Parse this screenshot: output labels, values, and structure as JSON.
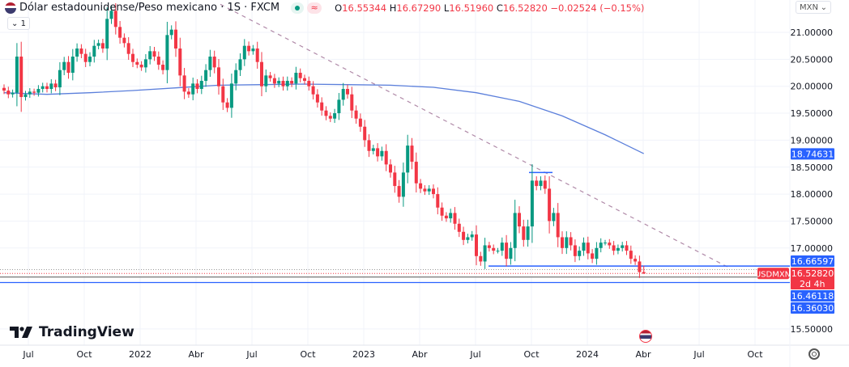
{
  "header": {
    "title": "Dólar estadounidense/Peso mexicano · 1S · FXCM",
    "open_label": "O",
    "open": "16.55344",
    "high_label": "H",
    "high": "16.67290",
    "low_label": "L",
    "low": "16.51960",
    "close_label": "C",
    "close": "16.52820",
    "change": "−0.02524 (−0.15%)",
    "approx_icon": "≈",
    "collapse_label": "1"
  },
  "currency_selector": {
    "value": "MXN"
  },
  "logo": {
    "text": "TradingView"
  },
  "colors": {
    "up": "#089981",
    "down": "#f23645",
    "ma": "#5b7fdb",
    "level": "#2962ff",
    "trend": "#b08aa8"
  },
  "chart_data": {
    "type": "candlestick",
    "symbol": "USDMXN",
    "interval": "1S",
    "ylim": [
      15.3,
      21.5
    ],
    "y_ticks": [
      "21.00000",
      "20.50000",
      "20.00000",
      "19.50000",
      "19.00000",
      "18.50000",
      "18.00000",
      "17.50000",
      "17.00000",
      "15.50000"
    ],
    "x_ticks": [
      "Jul",
      "Oct",
      "2022",
      "Abr",
      "Jul",
      "Oct",
      "2023",
      "Abr",
      "Jul",
      "Oct",
      "2024",
      "Abr",
      "Jul",
      "Oct"
    ],
    "grid": true,
    "closes": [
      19.92,
      19.85,
      19.88,
      20.55,
      19.8,
      19.85,
      19.9,
      19.88,
      19.95,
      20.0,
      19.95,
      20.05,
      19.98,
      20.3,
      20.45,
      20.25,
      20.55,
      20.7,
      20.6,
      20.45,
      20.55,
      20.75,
      20.8,
      20.7,
      21.25,
      21.4,
      21.1,
      20.9,
      20.8,
      20.6,
      20.45,
      20.4,
      20.35,
      20.5,
      20.65,
      20.55,
      20.4,
      20.3,
      20.95,
      21.05,
      20.7,
      20.2,
      19.9,
      19.85,
      20.05,
      19.95,
      20.1,
      20.3,
      20.55,
      20.35,
      20.0,
      19.7,
      19.6,
      20.05,
      20.3,
      20.5,
      20.75,
      20.65,
      20.7,
      20.45,
      20.0,
      20.2,
      20.15,
      20.05,
      20.1,
      20.0,
      20.1,
      20.05,
      20.25,
      20.15,
      20.1,
      20.0,
      19.85,
      19.7,
      19.55,
      19.45,
      19.4,
      19.5,
      19.75,
      19.95,
      19.85,
      19.55,
      19.4,
      19.25,
      19.0,
      18.8,
      18.85,
      18.7,
      18.8,
      18.55,
      18.4,
      18.15,
      17.95,
      18.4,
      18.9,
      18.6,
      18.2,
      18.1,
      18.05,
      18.1,
      18.0,
      17.75,
      17.6,
      17.55,
      17.65,
      17.45,
      17.3,
      17.15,
      17.2,
      17.25,
      16.85,
      16.75,
      17.05,
      17.0,
      16.95,
      16.95,
      17.1,
      16.8,
      17.0,
      17.65,
      17.4,
      17.15,
      17.4,
      18.25,
      18.15,
      18.25,
      18.1,
      17.5,
      17.65,
      17.2,
      17.0,
      17.2,
      17.05,
      16.85,
      16.95,
      17.1,
      16.9,
      16.8,
      17.0,
      17.1,
      17.1,
      17.05,
      16.95,
      17.0,
      17.05,
      16.95,
      16.8,
      16.75,
      16.55344,
      16.5282
    ],
    "last_candle": {
      "open": 16.55344,
      "high": 16.6729,
      "low": 16.5196,
      "close": 16.5282
    },
    "moving_average_every_10_weeks": [
      19.88,
      19.85,
      19.88,
      19.92,
      19.97,
      20.02,
      20.03,
      20.04,
      20.03,
      20.02,
      19.98,
      19.88,
      19.72,
      19.45,
      19.1,
      18.75
    ],
    "trendline": {
      "start": {
        "date": "2022-05",
        "price": 21.52
      },
      "end": {
        "date": "2024-08",
        "price": 16.65
      },
      "style": "dashed"
    },
    "resistance_segment": {
      "price": 18.4,
      "from": "2023-10",
      "to": "2023-11"
    },
    "levels": [
      {
        "label": "16.66597",
        "price": 16.66597,
        "color": "#2962ff"
      },
      {
        "label": "16.46118",
        "price": 16.46118,
        "color": "#2962ff"
      },
      {
        "label": "16.36030",
        "price": 16.3603,
        "color": "#2962ff"
      }
    ],
    "ma_label": "18.74631",
    "current_price": {
      "label": "16.52820",
      "countdown": "2d 4h",
      "symbol_tag": "USDMXN"
    }
  }
}
